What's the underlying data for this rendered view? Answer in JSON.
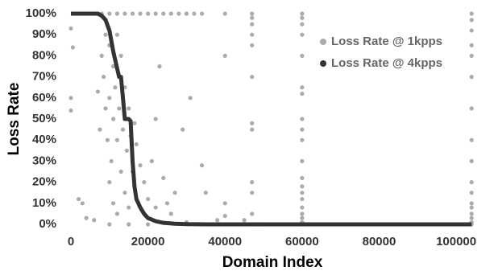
{
  "chart_data": {
    "type": "scatter",
    "xlabel": "Domain Index",
    "ylabel": "Loss Rate",
    "xlim": [
      0,
      105000
    ],
    "ylim": [
      0,
      100
    ],
    "xticks": [
      0,
      20000,
      40000,
      60000,
      80000,
      100000
    ],
    "yticks": [
      {
        "value": 0,
        "label": "0%"
      },
      {
        "value": 10,
        "label": "10%"
      },
      {
        "value": 20,
        "label": "20%"
      },
      {
        "value": 30,
        "label": "30%"
      },
      {
        "value": 40,
        "label": "40%"
      },
      {
        "value": 50,
        "label": "50%"
      },
      {
        "value": 60,
        "label": "60%"
      },
      {
        "value": 70,
        "label": "70%"
      },
      {
        "value": 80,
        "label": "80%"
      },
      {
        "value": 90,
        "label": "90%"
      },
      {
        "value": 100,
        "label": "100%"
      }
    ],
    "legend": "upper right",
    "series": [
      {
        "name": "Loss Rate @ 1kpps",
        "color": "#ababab",
        "type": "scatter",
        "x": [
          500,
          2000,
          4000,
          6000,
          8000,
          10000,
          12000,
          14000,
          16000,
          18000,
          20000,
          22000,
          24000,
          26000,
          28000,
          30000,
          32000,
          34000,
          40000,
          47000,
          60000,
          104000,
          47000,
          47000,
          47000,
          47000,
          47000,
          47000,
          47000,
          47000,
          47000,
          47000,
          47000,
          60000,
          60000,
          60000,
          60000,
          60000,
          60000,
          60000,
          60000,
          60000,
          60000,
          60000,
          60000,
          60000,
          60000,
          60000,
          60000,
          60000,
          60000,
          60000,
          104000,
          104000,
          104000,
          104000,
          104000,
          104000,
          104000,
          104000,
          104000,
          104000,
          104000,
          104000,
          104000,
          104000,
          104000,
          104000,
          0,
          0,
          0,
          500,
          2000,
          3000,
          4000,
          6000,
          7000,
          7500,
          8000,
          8500,
          9000,
          9000,
          9500,
          10000,
          10000,
          10000,
          10500,
          11000,
          11000,
          11000,
          11500,
          12000,
          12000,
          12000,
          12500,
          13000,
          13000,
          13500,
          14000,
          14000,
          14500,
          15000,
          15000,
          15500,
          16000,
          16500,
          17000,
          18000,
          19000,
          20000,
          21000,
          22000,
          22000,
          23000,
          24000,
          25000,
          26000,
          27000,
          29000,
          31000,
          34000,
          35000,
          38000,
          40000,
          40000,
          40000,
          45000,
          50000,
          20000,
          30000,
          10000,
          15000
        ],
        "values": [
          100,
          100,
          100,
          100,
          100,
          100,
          100,
          100,
          100,
          100,
          100,
          100,
          100,
          100,
          100,
          100,
          100,
          100,
          100,
          100,
          100,
          100,
          98,
          95,
          90,
          85,
          70,
          48,
          45,
          20,
          15,
          5,
          0,
          98,
          95,
          90,
          80,
          65,
          62,
          50,
          45,
          40,
          30,
          22,
          18,
          15,
          12,
          8,
          5,
          3,
          1,
          0,
          97,
          92,
          85,
          80,
          70,
          55,
          40,
          30,
          20,
          15,
          10,
          8,
          5,
          3,
          1,
          0,
          93,
          60,
          54,
          84,
          12,
          10,
          3,
          2,
          63,
          45,
          80,
          70,
          90,
          55,
          40,
          85,
          60,
          20,
          30,
          75,
          50,
          10,
          65,
          90,
          40,
          5,
          55,
          80,
          25,
          45,
          65,
          15,
          35,
          55,
          8,
          42,
          25,
          48,
          38,
          28,
          20,
          12,
          30,
          50,
          8,
          75,
          22,
          10,
          5,
          15,
          45,
          60,
          28,
          15,
          2,
          80,
          10,
          4,
          2,
          0,
          0,
          1,
          0,
          0
        ]
      },
      {
        "name": "Loss Rate @ 4kpps",
        "color": "#333333",
        "type": "line",
        "x": [
          0,
          7000,
          8000,
          9000,
          10000,
          11000,
          12000,
          12500,
          13000,
          13500,
          14000,
          15000,
          15500,
          16000,
          16500,
          17000,
          18000,
          19000,
          20000,
          22000,
          24000,
          27000,
          30000,
          35000,
          104000
        ],
        "values": [
          100,
          100,
          99,
          97,
          92,
          82,
          74,
          70,
          70,
          60,
          50,
          50,
          49,
          30,
          18,
          12,
          8,
          5,
          3,
          1.5,
          0.7,
          0.3,
          0.1,
          0,
          0
        ]
      }
    ]
  }
}
